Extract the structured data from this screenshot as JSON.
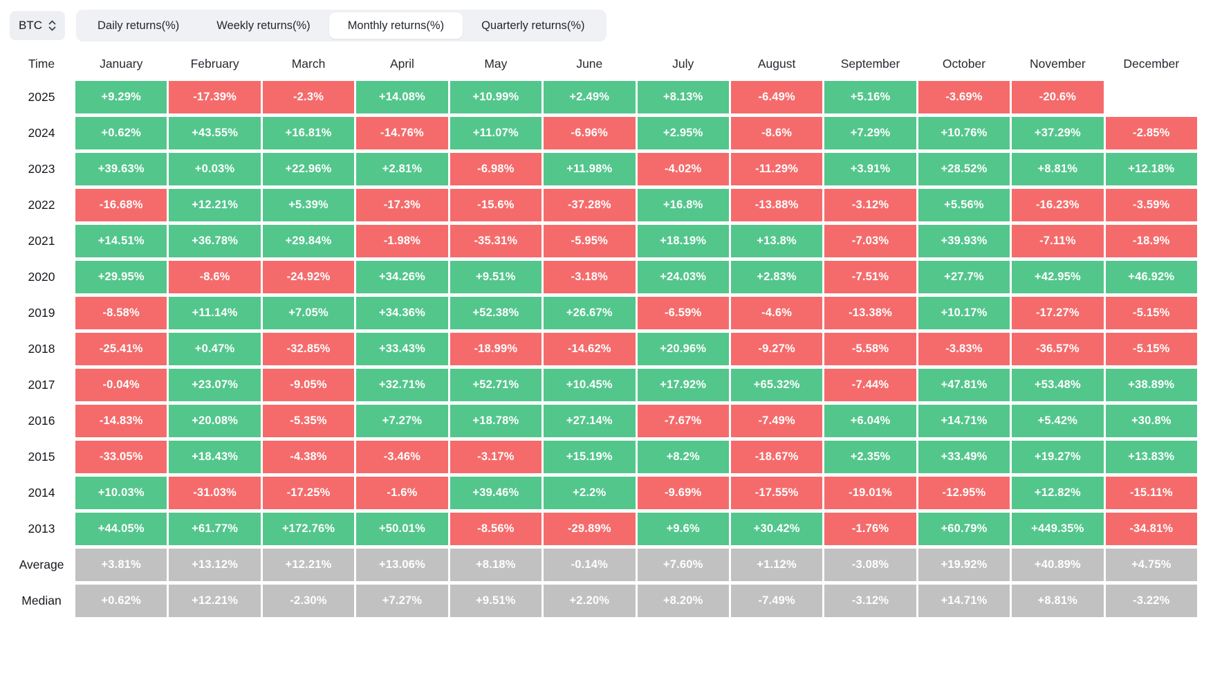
{
  "topbar": {
    "asset": "BTC",
    "tabs": [
      {
        "label": "Daily returns(%)",
        "active": false
      },
      {
        "label": "Weekly returns(%)",
        "active": false
      },
      {
        "label": "Monthly returns(%)",
        "active": true
      },
      {
        "label": "Quarterly returns(%)",
        "active": false
      }
    ]
  },
  "theme": {
    "positive": "#53c68c",
    "negative": "#f56b6b",
    "neutral": "#c1c1c1"
  },
  "table": {
    "corner_label": "Time",
    "columns": [
      "January",
      "February",
      "March",
      "April",
      "May",
      "June",
      "July",
      "August",
      "September",
      "October",
      "November",
      "December"
    ],
    "rows": [
      {
        "label": "2025",
        "type": "year",
        "values": [
          "+9.29%",
          "-17.39%",
          "-2.3%",
          "+14.08%",
          "+10.99%",
          "+2.49%",
          "+8.13%",
          "-6.49%",
          "+5.16%",
          "-3.69%",
          "-20.6%",
          null
        ]
      },
      {
        "label": "2024",
        "type": "year",
        "values": [
          "+0.62%",
          "+43.55%",
          "+16.81%",
          "-14.76%",
          "+11.07%",
          "-6.96%",
          "+2.95%",
          "-8.6%",
          "+7.29%",
          "+10.76%",
          "+37.29%",
          "-2.85%"
        ]
      },
      {
        "label": "2023",
        "type": "year",
        "values": [
          "+39.63%",
          "+0.03%",
          "+22.96%",
          "+2.81%",
          "-6.98%",
          "+11.98%",
          "-4.02%",
          "-11.29%",
          "+3.91%",
          "+28.52%",
          "+8.81%",
          "+12.18%"
        ]
      },
      {
        "label": "2022",
        "type": "year",
        "values": [
          "-16.68%",
          "+12.21%",
          "+5.39%",
          "-17.3%",
          "-15.6%",
          "-37.28%",
          "+16.8%",
          "-13.88%",
          "-3.12%",
          "+5.56%",
          "-16.23%",
          "-3.59%"
        ]
      },
      {
        "label": "2021",
        "type": "year",
        "values": [
          "+14.51%",
          "+36.78%",
          "+29.84%",
          "-1.98%",
          "-35.31%",
          "-5.95%",
          "+18.19%",
          "+13.8%",
          "-7.03%",
          "+39.93%",
          "-7.11%",
          "-18.9%"
        ]
      },
      {
        "label": "2020",
        "type": "year",
        "values": [
          "+29.95%",
          "-8.6%",
          "-24.92%",
          "+34.26%",
          "+9.51%",
          "-3.18%",
          "+24.03%",
          "+2.83%",
          "-7.51%",
          "+27.7%",
          "+42.95%",
          "+46.92%"
        ]
      },
      {
        "label": "2019",
        "type": "year",
        "values": [
          "-8.58%",
          "+11.14%",
          "+7.05%",
          "+34.36%",
          "+52.38%",
          "+26.67%",
          "-6.59%",
          "-4.6%",
          "-13.38%",
          "+10.17%",
          "-17.27%",
          "-5.15%"
        ]
      },
      {
        "label": "2018",
        "type": "year",
        "values": [
          "-25.41%",
          "+0.47%",
          "-32.85%",
          "+33.43%",
          "-18.99%",
          "-14.62%",
          "+20.96%",
          "-9.27%",
          "-5.58%",
          "-3.83%",
          "-36.57%",
          "-5.15%"
        ]
      },
      {
        "label": "2017",
        "type": "year",
        "values": [
          "-0.04%",
          "+23.07%",
          "-9.05%",
          "+32.71%",
          "+52.71%",
          "+10.45%",
          "+17.92%",
          "+65.32%",
          "-7.44%",
          "+47.81%",
          "+53.48%",
          "+38.89%"
        ]
      },
      {
        "label": "2016",
        "type": "year",
        "values": [
          "-14.83%",
          "+20.08%",
          "-5.35%",
          "+7.27%",
          "+18.78%",
          "+27.14%",
          "-7.67%",
          "-7.49%",
          "+6.04%",
          "+14.71%",
          "+5.42%",
          "+30.8%"
        ]
      },
      {
        "label": "2015",
        "type": "year",
        "values": [
          "-33.05%",
          "+18.43%",
          "-4.38%",
          "-3.46%",
          "-3.17%",
          "+15.19%",
          "+8.2%",
          "-18.67%",
          "+2.35%",
          "+33.49%",
          "+19.27%",
          "+13.83%"
        ]
      },
      {
        "label": "2014",
        "type": "year",
        "values": [
          "+10.03%",
          "-31.03%",
          "-17.25%",
          "-1.6%",
          "+39.46%",
          "+2.2%",
          "-9.69%",
          "-17.55%",
          "-19.01%",
          "-12.95%",
          "+12.82%",
          "-15.11%"
        ]
      },
      {
        "label": "2013",
        "type": "year",
        "values": [
          "+44.05%",
          "+61.77%",
          "+172.76%",
          "+50.01%",
          "-8.56%",
          "-29.89%",
          "+9.6%",
          "+30.42%",
          "-1.76%",
          "+60.79%",
          "+449.35%",
          "-34.81%"
        ]
      },
      {
        "label": "Average",
        "type": "aggregate",
        "values": [
          "+3.81%",
          "+13.12%",
          "+12.21%",
          "+13.06%",
          "+8.18%",
          "-0.14%",
          "+7.60%",
          "+1.12%",
          "-3.08%",
          "+19.92%",
          "+40.89%",
          "+4.75%"
        ]
      },
      {
        "label": "Median",
        "type": "aggregate",
        "values": [
          "+0.62%",
          "+12.21%",
          "-2.30%",
          "+7.27%",
          "+9.51%",
          "+2.20%",
          "+8.20%",
          "-7.49%",
          "-3.12%",
          "+14.71%",
          "+8.81%",
          "-3.22%"
        ]
      }
    ]
  }
}
